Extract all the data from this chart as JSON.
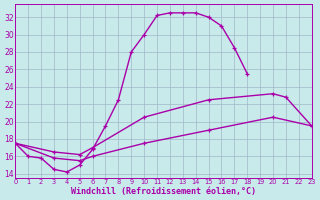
{
  "bg": "#c8eaea",
  "grid_color": "#a0b8c8",
  "line_color": "#aa00aa",
  "xlabel": "Windchill (Refroidissement éolien,°C)",
  "xlim": [
    0,
    23
  ],
  "ylim": [
    13.5,
    33.5
  ],
  "yticks": [
    14,
    16,
    18,
    20,
    22,
    24,
    26,
    28,
    30,
    32
  ],
  "xticks": [
    0,
    1,
    2,
    3,
    4,
    5,
    6,
    7,
    8,
    9,
    10,
    11,
    12,
    13,
    14,
    15,
    16,
    17,
    18,
    19,
    20,
    21,
    22,
    23
  ],
  "curve1_x": [
    0,
    1,
    2,
    3,
    4,
    5,
    6,
    7,
    8,
    9,
    10,
    11,
    12,
    13,
    14,
    15,
    16,
    17,
    18
  ],
  "curve1_y": [
    17.5,
    16.0,
    15.8,
    14.5,
    14.2,
    15.0,
    16.8,
    19.5,
    22.5,
    28.0,
    30.0,
    32.2,
    32.5,
    32.5,
    32.5,
    32.0,
    31.0,
    28.5,
    25.5
  ],
  "curve2_x": [
    0,
    3,
    5,
    6,
    10,
    15,
    20,
    21,
    23
  ],
  "curve2_y": [
    17.5,
    16.5,
    16.2,
    17.0,
    20.5,
    22.5,
    23.2,
    22.8,
    19.5
  ],
  "curve3_x": [
    0,
    3,
    5,
    6,
    10,
    15,
    20,
    23
  ],
  "curve3_y": [
    17.5,
    15.8,
    15.5,
    16.0,
    17.5,
    19.0,
    20.5,
    19.5
  ]
}
